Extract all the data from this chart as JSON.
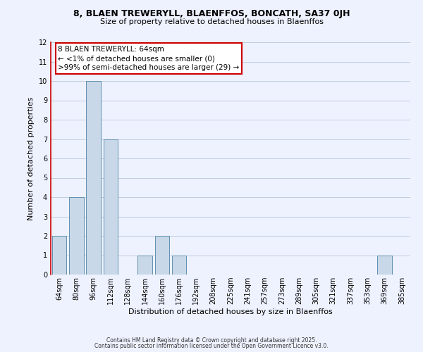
{
  "title": "8, BLAEN TREWERYLL, BLAENFFOS, BONCATH, SA37 0JH",
  "subtitle": "Size of property relative to detached houses in Blaenffos",
  "xlabel": "Distribution of detached houses by size in Blaenffos",
  "ylabel": "Number of detached properties",
  "bins": [
    "64sqm",
    "80sqm",
    "96sqm",
    "112sqm",
    "128sqm",
    "144sqm",
    "160sqm",
    "176sqm",
    "192sqm",
    "208sqm",
    "225sqm",
    "241sqm",
    "257sqm",
    "273sqm",
    "289sqm",
    "305sqm",
    "321sqm",
    "337sqm",
    "353sqm",
    "369sqm",
    "385sqm"
  ],
  "values": [
    2,
    4,
    10,
    7,
    0,
    1,
    2,
    1,
    0,
    0,
    0,
    0,
    0,
    0,
    0,
    0,
    0,
    0,
    0,
    1,
    0
  ],
  "bar_color": "#c8d8e8",
  "bar_edge_color": "#6090b0",
  "annotation_line1": "8 BLAEN TREWERYLL: 64sqm",
  "annotation_line2": "← <1% of detached houses are smaller (0)",
  "annotation_line3": ">99% of semi-detached houses are larger (29) →",
  "annotation_box_edge": "#cc0000",
  "ylim": [
    0,
    12
  ],
  "yticks": [
    0,
    1,
    2,
    3,
    4,
    5,
    6,
    7,
    8,
    9,
    10,
    11,
    12
  ],
  "footer1": "Contains HM Land Registry data © Crown copyright and database right 2025.",
  "footer2": "Contains public sector information licensed under the Open Government Licence v3.0.",
  "background_color": "#eef2ff",
  "grid_color": "#c0cce0",
  "fig_width": 6.0,
  "fig_height": 5.0,
  "title_fontsize": 9,
  "subtitle_fontsize": 8,
  "axis_label_fontsize": 8,
  "tick_fontsize": 7,
  "annot_fontsize": 7.5,
  "footer_fontsize": 5.5
}
